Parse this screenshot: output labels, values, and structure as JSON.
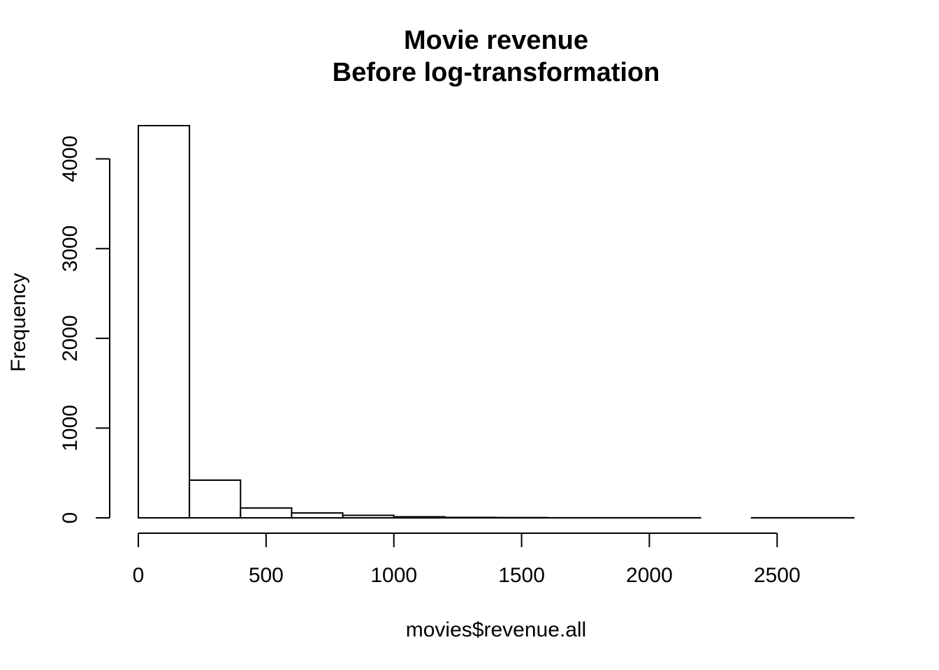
{
  "chart_data": {
    "type": "bar",
    "subtype": "histogram",
    "title": "Movie revenue",
    "subtitle": "Before log-transformation",
    "xlabel": "movies$revenue.all",
    "ylabel": "Frequency",
    "bins": [
      {
        "start": 0,
        "end": 200,
        "count": 4370
      },
      {
        "start": 200,
        "end": 400,
        "count": 420
      },
      {
        "start": 400,
        "end": 600,
        "count": 110
      },
      {
        "start": 600,
        "end": 800,
        "count": 55
      },
      {
        "start": 800,
        "end": 1000,
        "count": 28
      },
      {
        "start": 1000,
        "end": 1200,
        "count": 12
      },
      {
        "start": 1200,
        "end": 1400,
        "count": 5
      },
      {
        "start": 1400,
        "end": 1600,
        "count": 3
      },
      {
        "start": 1600,
        "end": 1800,
        "count": 1
      },
      {
        "start": 1800,
        "end": 2000,
        "count": 1
      },
      {
        "start": 2000,
        "end": 2200,
        "count": 1
      },
      {
        "start": 2200,
        "end": 2400,
        "count": 0
      },
      {
        "start": 2400,
        "end": 2600,
        "count": 1
      },
      {
        "start": 2600,
        "end": 2800,
        "count": 1
      }
    ],
    "xticks": [
      0,
      500,
      1000,
      1500,
      2000,
      2500
    ],
    "yticks": [
      0,
      1000,
      2000,
      3000,
      4000
    ],
    "xlim": [
      0,
      2800
    ],
    "ylim": [
      0,
      4370
    ],
    "grid": false,
    "colors": {
      "bar_fill": "#ffffff",
      "bar_stroke": "#000000"
    }
  }
}
